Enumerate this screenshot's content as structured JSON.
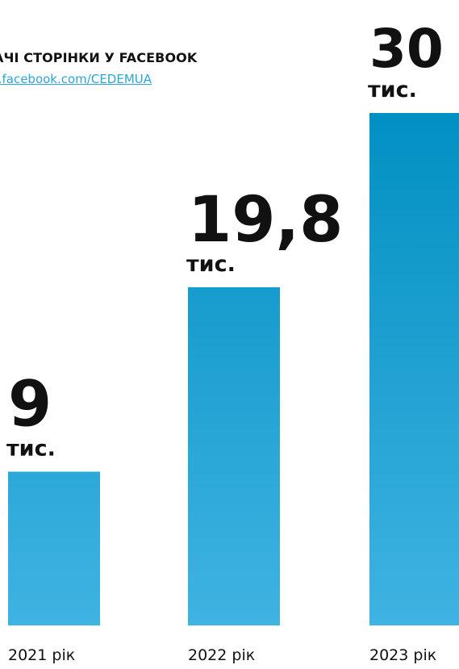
{
  "header": {
    "title": "АЧІ СТОРІНКИ У FACEBOOK",
    "link": "v.facebook.com/CEDEMUA"
  },
  "chart_data": {
    "type": "bar",
    "categories": [
      "2021 рік",
      "2022 рік",
      "2023 рік"
    ],
    "values": [
      9,
      19.8,
      30
    ],
    "value_labels": [
      "9",
      "19,8",
      "30"
    ],
    "unit_label": "тис.",
    "ylim": [
      0,
      30
    ],
    "grid": false,
    "legend": "none",
    "colors": {
      "bar_top": "#0190c2",
      "bar_bottom": "#3fb3e2",
      "text": "#111111",
      "link": "#2aa6d9"
    }
  }
}
